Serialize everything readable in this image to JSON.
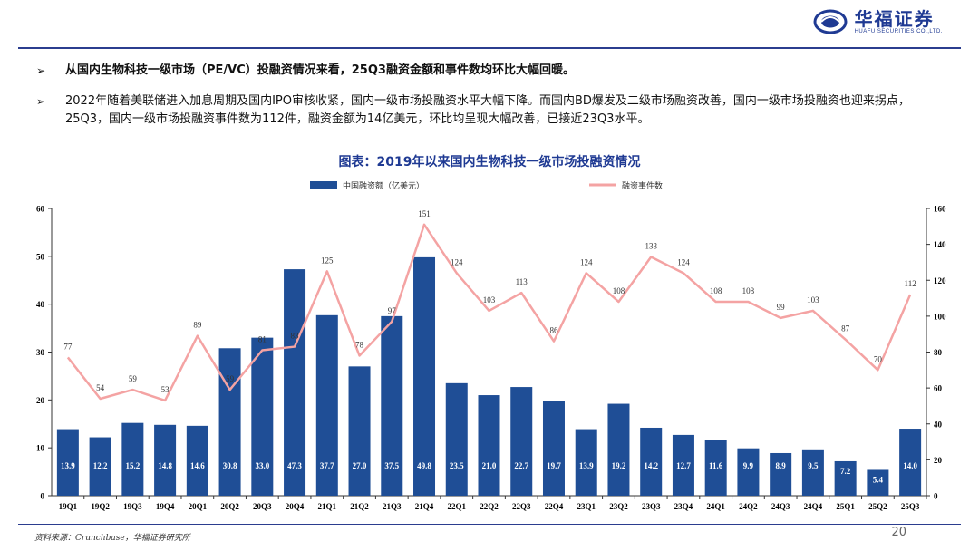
{
  "brand": {
    "name_cn": "华福证券",
    "name_en": "HUAFU SECURITIES CO.,LTD."
  },
  "bullets": [
    {
      "marker": "➢",
      "text": "从国内生物科技一级市场（PE/VC）投融资情况来看，25Q3融资金额和事件数均环比大幅回暖。"
    },
    {
      "marker": "➢",
      "text": "2022年随着美联储进入加息周期及国内IPO审核收紧，国内一级市场投融资水平大幅下降。而国内BD爆发及二级市场融资改善，国内一级市场投融资也迎来拐点，25Q3，国内一级市场投融资事件数为112件，融资金额为14亿美元，环比均呈现大幅改善，已接近23Q3水平。"
    }
  ],
  "chart_data": {
    "type": "bar+line",
    "title": "图表：2019年以来国内生物科技一级市场投融资情况",
    "categories": [
      "19Q1",
      "19Q2",
      "19Q3",
      "19Q4",
      "20Q1",
      "20Q2",
      "20Q3",
      "20Q4",
      "21Q1",
      "21Q2",
      "21Q3",
      "21Q4",
      "22Q1",
      "22Q2",
      "22Q3",
      "22Q4",
      "23Q1",
      "23Q2",
      "23Q3",
      "23Q4",
      "24Q1",
      "24Q2",
      "24Q3",
      "24Q4",
      "25Q1",
      "25Q2",
      "25Q3"
    ],
    "series": [
      {
        "name": "中国融资额（亿美元）",
        "type": "bar",
        "axis": "left",
        "color": "#1f4e96",
        "values": [
          13.9,
          12.2,
          15.2,
          14.8,
          14.6,
          30.8,
          33.0,
          47.3,
          37.7,
          27.0,
          37.5,
          49.8,
          23.5,
          21.0,
          22.7,
          19.7,
          13.9,
          19.2,
          14.2,
          12.7,
          11.6,
          9.9,
          8.9,
          9.5,
          7.2,
          5.4,
          14.0
        ],
        "labels": [
          "13.9",
          "12.2",
          "15.2",
          "14.8",
          "14.6",
          "30.8",
          "33.0",
          "47.3",
          "37.7",
          "27.0",
          "37.5",
          "49.8",
          "23.5",
          "21.0",
          "22.7",
          "19.7",
          "13.9",
          "19.2",
          "14.2",
          "12.7",
          "11.6",
          "9.9",
          "8.9",
          "9.5",
          "7.2",
          "5.4",
          "14.0"
        ]
      },
      {
        "name": "融资事件数",
        "type": "line",
        "axis": "right",
        "color": "#f4a3a3",
        "values": [
          77,
          54,
          59,
          53,
          89,
          59,
          81,
          83,
          125,
          78,
          97,
          151,
          124,
          103,
          113,
          86,
          124,
          108,
          133,
          124,
          108,
          108,
          99,
          103,
          87,
          70,
          112
        ]
      }
    ],
    "y_left": {
      "min": 0,
      "max": 60,
      "ticks": [
        "0",
        "10",
        "20",
        "30",
        "40",
        "50",
        "60"
      ]
    },
    "y_right": {
      "min": 0,
      "max": 160,
      "ticks": [
        "0",
        "20",
        "40",
        "60",
        "80",
        "100",
        "120",
        "140",
        "160"
      ]
    },
    "legend": [
      "中国融资额（亿美元）",
      "融资事件数"
    ],
    "legend_placement": "top-center"
  },
  "footer": {
    "source": "资料来源：Crunchbase，华福证券研究所",
    "page": "20"
  }
}
